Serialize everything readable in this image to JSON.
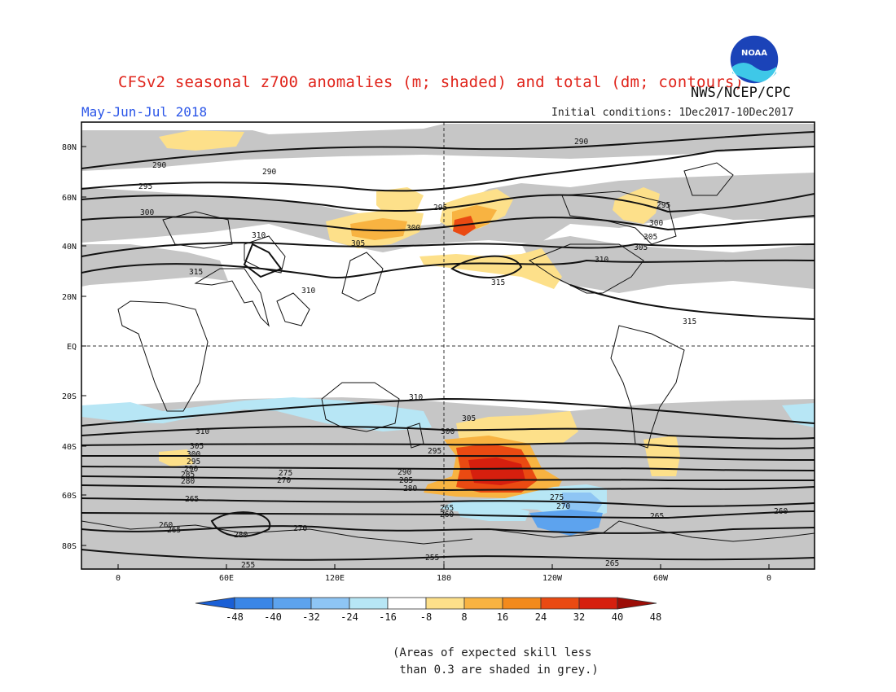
{
  "header": {
    "title": "CFSv2 seasonal z700 anomalies (m; shaded) and total (dm; contours)",
    "period": "May-Jun-Jul 2018",
    "initial_conditions": "Initial conditions: 1Dec2017-10Dec2017",
    "agency": "NWS/NCEP/CPC",
    "logo_text": "NOAA"
  },
  "map": {
    "lat_labels": [
      "80N",
      "60N",
      "40N",
      "20N",
      "EQ",
      "20S",
      "40S",
      "60S",
      "80S"
    ],
    "lon_labels": [
      "0",
      "60E",
      "120E",
      "180",
      "120W",
      "60W",
      "0"
    ],
    "contour_labels": {
      "nh": [
        "290",
        "295",
        "300",
        "305",
        "310",
        "315",
        "290",
        "295",
        "300",
        "305",
        "310",
        "315",
        "295",
        "300",
        "305",
        "310",
        "315",
        "290"
      ],
      "sh": [
        "310",
        "305",
        "300",
        "295",
        "290",
        "285",
        "280",
        "275",
        "270",
        "265",
        "260",
        "255",
        "310",
        "305",
        "300",
        "295",
        "290",
        "285",
        "280",
        "275",
        "270",
        "265",
        "260",
        "265",
        "280",
        "270",
        "265",
        "260",
        "255",
        "265"
      ]
    }
  },
  "colorbar": {
    "ticks": [
      "-48",
      "-40",
      "-32",
      "-24",
      "-16",
      "-8",
      "8",
      "16",
      "24",
      "32",
      "40",
      "48"
    ],
    "colors": [
      "#1a5fd6",
      "#3a86e6",
      "#5da3ee",
      "#8ec5f4",
      "#b7e6f5",
      "#ffffff",
      "#fde08a",
      "#f8b341",
      "#f38a1c",
      "#ea4a12",
      "#d61f0e",
      "#9c0d07"
    ]
  },
  "note": "(Areas of expected skill less\n than 0.3 are shaded in grey.)"
}
